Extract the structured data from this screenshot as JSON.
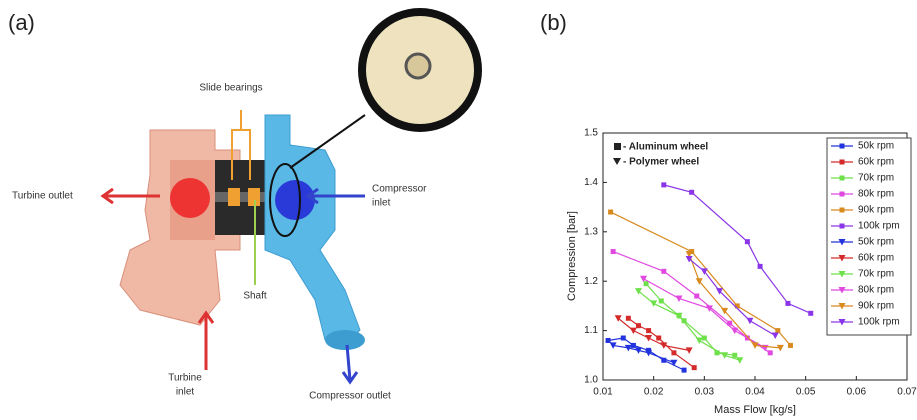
{
  "panels": {
    "a": "(a)",
    "b": "(b)"
  },
  "diagram": {
    "slide_bearings": "Slide bearings",
    "turbine_outlet": "Turbine outlet",
    "compressor_inlet": [
      "Compressor",
      "inlet"
    ],
    "shaft": "Shaft",
    "turbine_inlet": [
      "Turbine",
      "inlet"
    ],
    "compressor_outlet": "Compressor outlet"
  },
  "chart_data": {
    "type": "line",
    "xlabel": "Mass Flow [kg/s]",
    "ylabel": "Compression [bar]",
    "xlim": [
      0.01,
      0.07
    ],
    "ylim": [
      1,
      1.5
    ],
    "xticks": [
      0.01,
      0.02,
      0.03,
      0.04,
      0.05,
      0.06,
      0.07
    ],
    "yticks": [
      {
        "value": 1,
        "label": "1.0"
      },
      1.1,
      1.2,
      1.3,
      1.4,
      1.5
    ],
    "annotations": [
      "- Aluminum wheel",
      "- Polymer wheel"
    ],
    "legend": "upper right",
    "series": [
      {
        "name": "50k rpm",
        "color": "#2233dd",
        "marker": "square",
        "x": [
          0.011,
          0.014,
          0.016,
          0.019,
          0.022,
          0.026
        ],
        "values": [
          1.08,
          1.085,
          1.07,
          1.06,
          1.04,
          1.02
        ]
      },
      {
        "name": "60k rpm",
        "color": "#d42a2a",
        "marker": "square",
        "x": [
          0.015,
          0.017,
          0.019,
          0.021,
          0.024,
          0.028
        ],
        "values": [
          1.125,
          1.11,
          1.1,
          1.085,
          1.055,
          1.025
        ]
      },
      {
        "name": "70k rpm",
        "color": "#6ee04a",
        "marker": "square",
        "x": [
          0.0185,
          0.0215,
          0.025,
          0.026,
          0.03,
          0.0325,
          0.036
        ],
        "values": [
          1.195,
          1.16,
          1.13,
          1.12,
          1.085,
          1.055,
          1.05
        ]
      },
      {
        "name": "80k rpm",
        "color": "#e048e0",
        "marker": "square",
        "x": [
          0.012,
          0.022,
          0.0285,
          0.035,
          0.0385,
          0.043
        ],
        "values": [
          1.26,
          1.22,
          1.17,
          1.115,
          1.085,
          1.055
        ]
      },
      {
        "name": "90k rpm",
        "color": "#d98a1e",
        "marker": "square",
        "x": [
          0.0115,
          0.0275,
          0.0365,
          0.0445,
          0.047
        ],
        "values": [
          1.34,
          1.26,
          1.15,
          1.1,
          1.07
        ]
      },
      {
        "name": "100k rpm",
        "color": "#8a36e8",
        "marker": "square",
        "x": [
          0.022,
          0.0275,
          0.0385,
          0.041,
          0.0465,
          0.051
        ],
        "values": [
          1.395,
          1.38,
          1.28,
          1.23,
          1.155,
          1.135
        ]
      },
      {
        "name": "50k rpm",
        "color": "#2233dd",
        "marker": "triangle",
        "x": [
          0.012,
          0.015,
          0.017,
          0.019,
          0.024
        ],
        "values": [
          1.07,
          1.065,
          1.06,
          1.055,
          1.035
        ]
      },
      {
        "name": "60k rpm",
        "color": "#d42a2a",
        "marker": "triangle",
        "x": [
          0.013,
          0.016,
          0.019,
          0.022,
          0.027
        ],
        "values": [
          1.125,
          1.1,
          1.085,
          1.07,
          1.06
        ]
      },
      {
        "name": "70k rpm",
        "color": "#6ee04a",
        "marker": "triangle",
        "x": [
          0.017,
          0.02,
          0.025,
          0.029,
          0.034,
          0.037
        ],
        "values": [
          1.18,
          1.155,
          1.13,
          1.08,
          1.05,
          1.04
        ]
      },
      {
        "name": "80k rpm",
        "color": "#e048e0",
        "marker": "triangle",
        "x": [
          0.018,
          0.025,
          0.031,
          0.036,
          0.042
        ],
        "values": [
          1.205,
          1.165,
          1.145,
          1.1,
          1.065
        ]
      },
      {
        "name": "90k rpm",
        "color": "#d98a1e",
        "marker": "triangle",
        "x": [
          0.027,
          0.029,
          0.034,
          0.04,
          0.045
        ],
        "values": [
          1.255,
          1.2,
          1.14,
          1.07,
          1.065
        ]
      },
      {
        "name": "100k rpm",
        "color": "#8a36e8",
        "marker": "triangle",
        "x": [
          0.027,
          0.03,
          0.033,
          0.039,
          0.044
        ],
        "values": [
          1.245,
          1.22,
          1.18,
          1.12,
          1.09
        ]
      }
    ]
  }
}
